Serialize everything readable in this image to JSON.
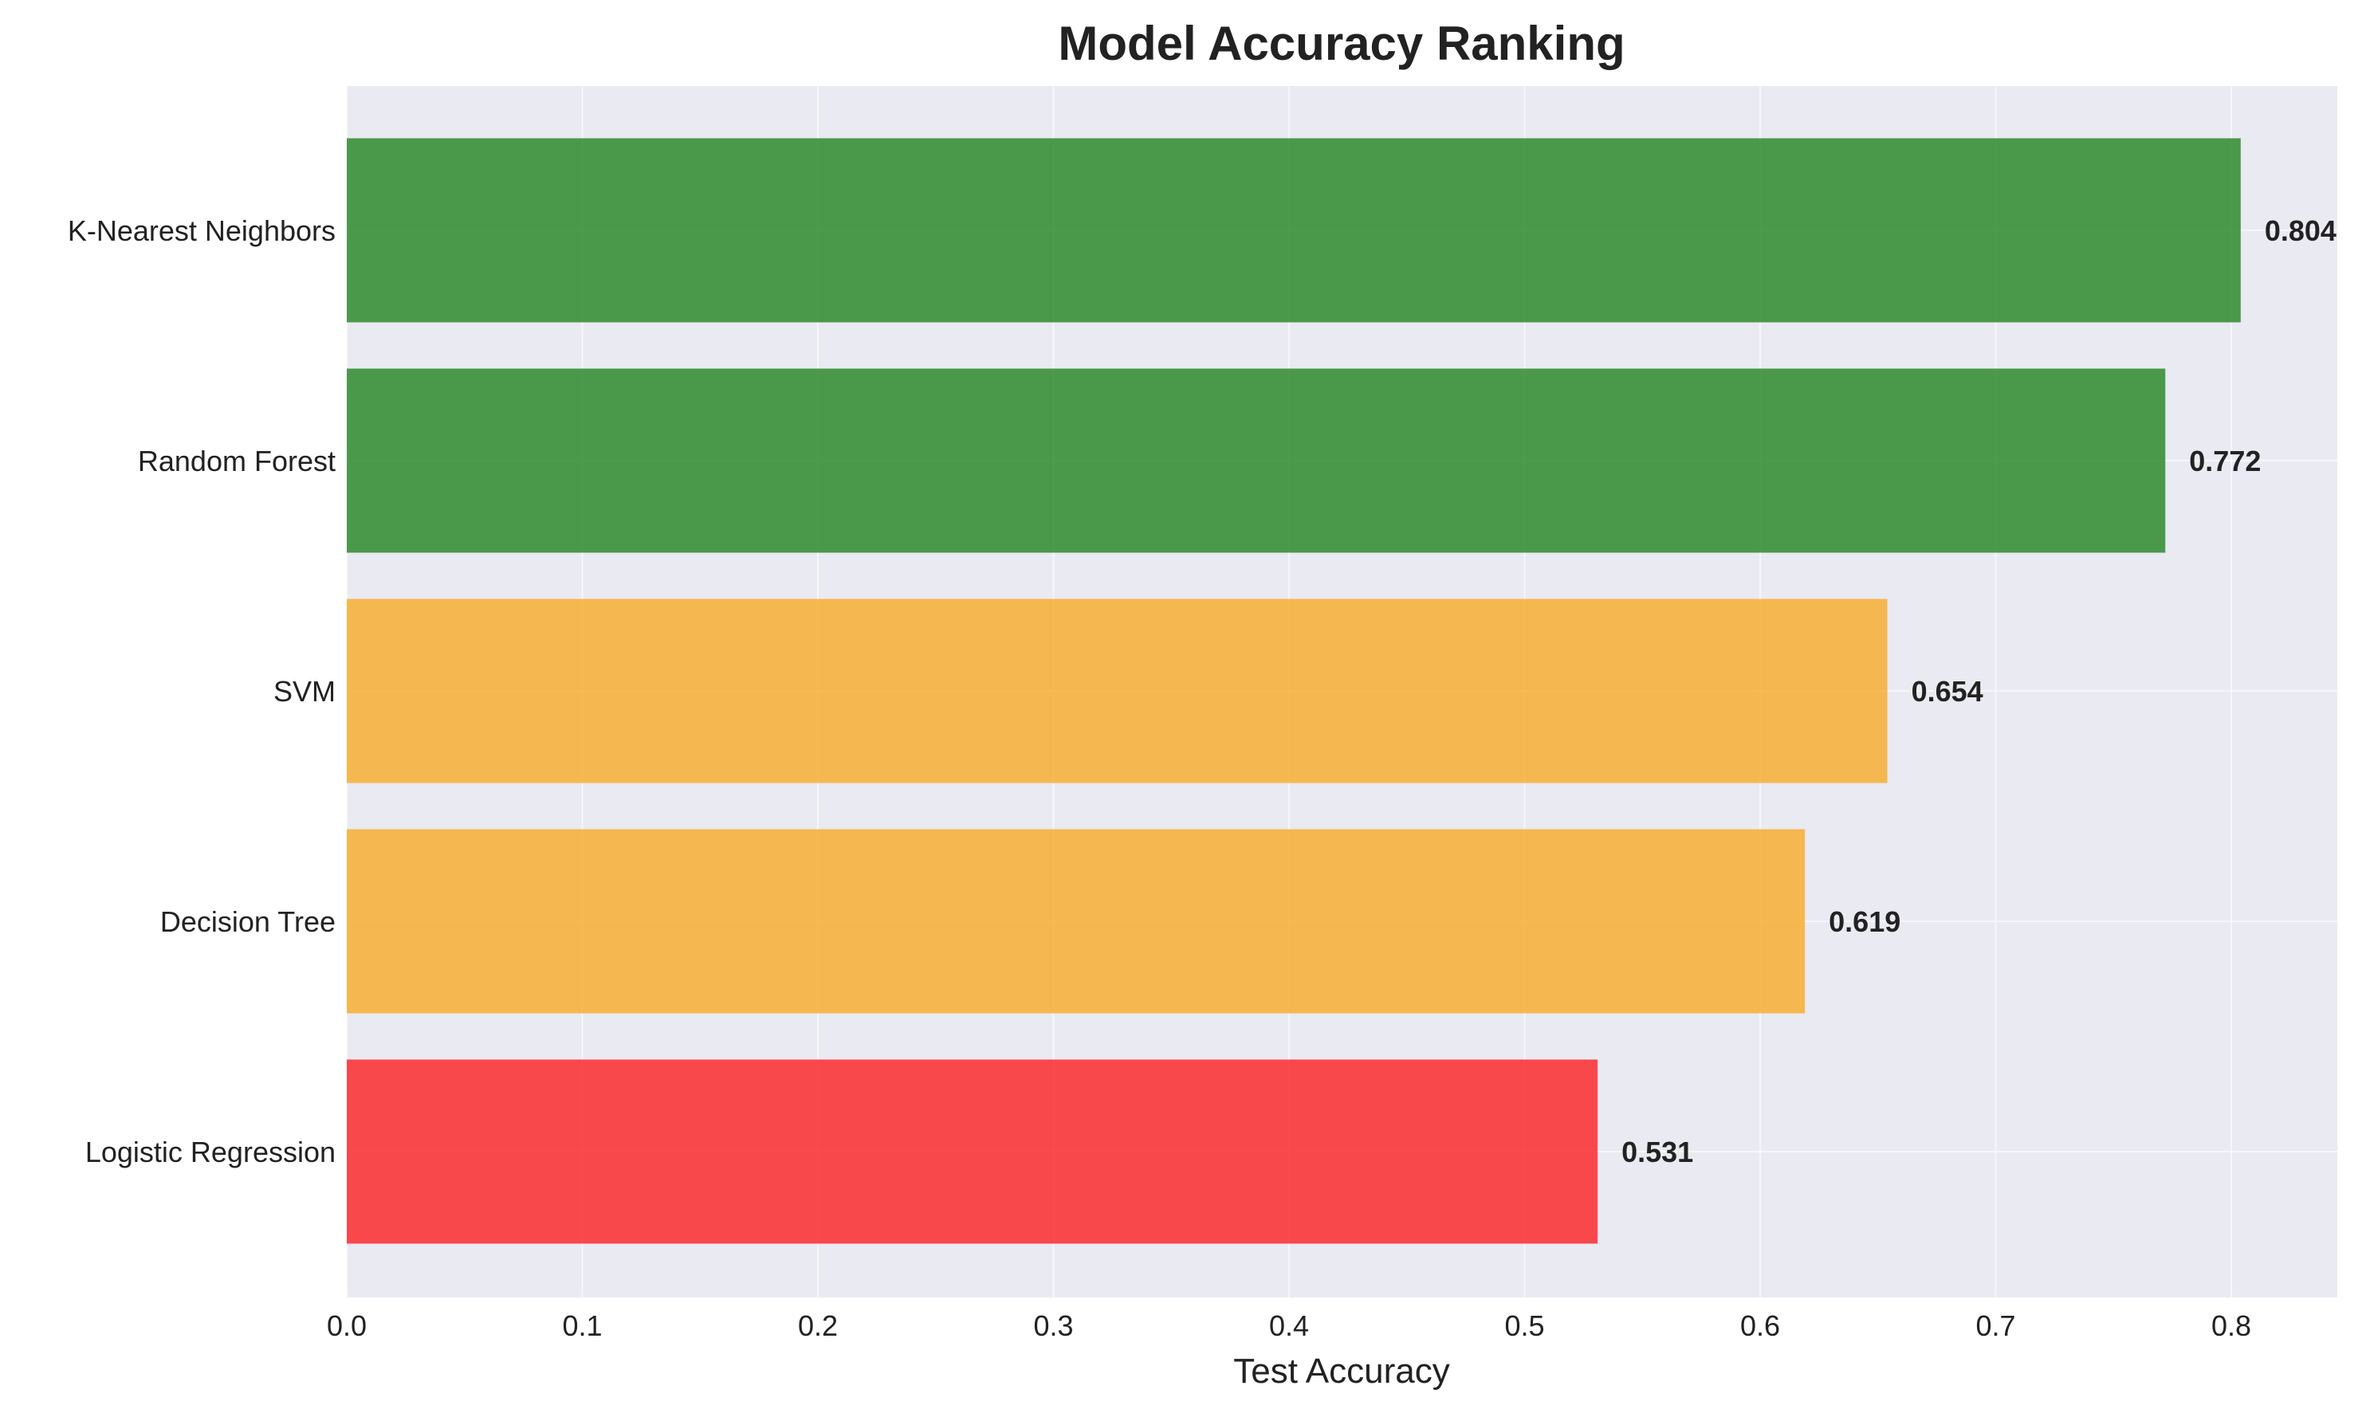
{
  "chart_data": {
    "type": "bar",
    "orientation": "horizontal",
    "title": "Model Accuracy Ranking",
    "xlabel": "Test Accuracy",
    "ylabel": "",
    "xlim": [
      0,
      0.845
    ],
    "x_ticks": [
      0.0,
      0.1,
      0.2,
      0.3,
      0.4,
      0.5,
      0.6,
      0.7,
      0.8
    ],
    "x_tick_labels": [
      "0.0",
      "0.1",
      "0.2",
      "0.3",
      "0.4",
      "0.5",
      "0.6",
      "0.7",
      "0.8"
    ],
    "grid": true,
    "categories": [
      "K-Nearest Neighbors",
      "Random Forest",
      "SVM",
      "Decision Tree",
      "Logistic Regression"
    ],
    "values": [
      0.804,
      0.772,
      0.654,
      0.619,
      0.531
    ],
    "value_labels": [
      "0.804",
      "0.772",
      "0.654",
      "0.619",
      "0.531"
    ],
    "colors": [
      "#2e8b2e",
      "#2e8b2e",
      "#f7ae33",
      "#f7ae33",
      "#fb2b2f"
    ],
    "background": "#eaeaf2"
  }
}
